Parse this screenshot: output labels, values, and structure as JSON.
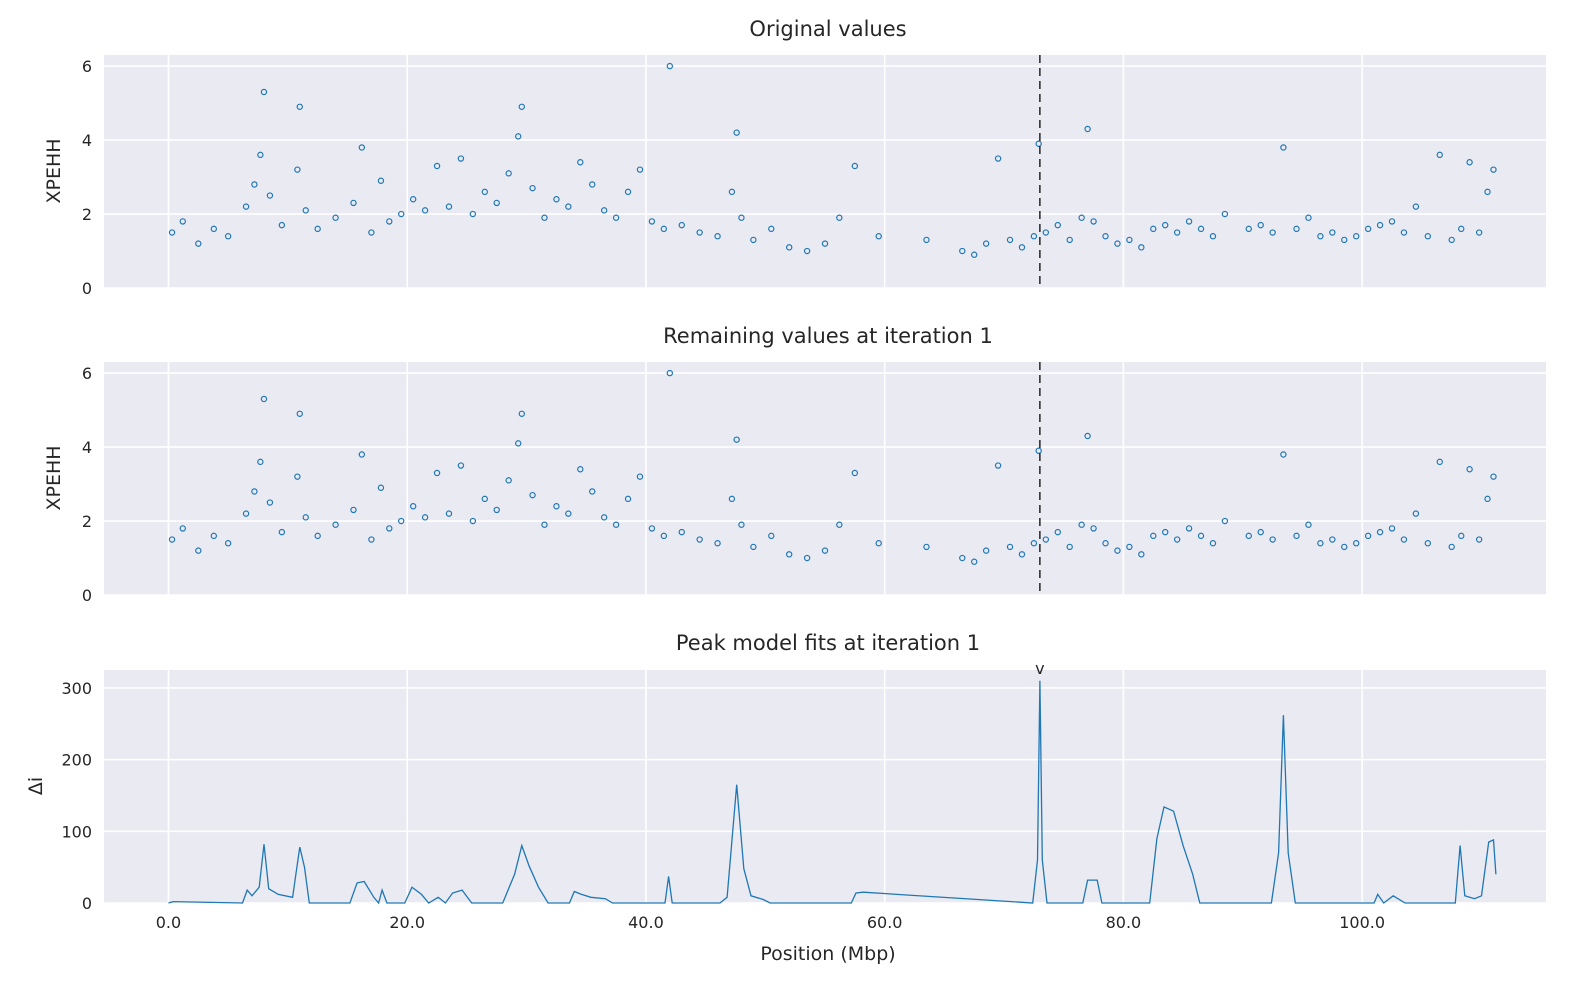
{
  "figure": {
    "xlabel": "Position (Mbp)",
    "x_tick_labels": [
      "0.0",
      "20.0",
      "40.0",
      "60.0",
      "80.0",
      "100.0"
    ]
  },
  "chart_data": [
    {
      "type": "scatter",
      "title": "Original values",
      "xlabel": "Position (Mbp)",
      "ylabel": "XPEHH",
      "xlim": [
        -5.4,
        115.4
      ],
      "ylim": [
        0,
        6.3
      ],
      "y_ticks": [
        0,
        2,
        4,
        6
      ],
      "grid": true,
      "marker": "open-circle",
      "color": "#1f77b4",
      "vline_x": 73.0,
      "x": [
        0.3,
        1.2,
        2.5,
        3.8,
        5.0,
        6.5,
        7.2,
        7.7,
        8.0,
        8.5,
        9.5,
        10.8,
        11.0,
        11.5,
        12.5,
        14.0,
        15.5,
        16.2,
        17.0,
        17.8,
        18.5,
        19.5,
        20.5,
        21.5,
        22.5,
        23.5,
        24.5,
        25.5,
        26.5,
        27.5,
        28.5,
        29.3,
        29.6,
        30.5,
        31.5,
        32.5,
        33.5,
        34.5,
        35.5,
        36.5,
        37.5,
        38.5,
        39.5,
        40.5,
        41.5,
        42.0,
        43.0,
        44.5,
        46.0,
        47.2,
        47.6,
        48.0,
        49.0,
        50.5,
        52.0,
        53.5,
        55.0,
        56.2,
        57.5,
        59.5,
        63.5,
        66.5,
        67.5,
        68.5,
        69.5,
        70.5,
        71.5,
        72.5,
        72.9,
        73.5,
        74.5,
        75.5,
        76.5,
        77.0,
        77.5,
        78.5,
        79.5,
        80.5,
        81.5,
        82.5,
        83.5,
        84.5,
        85.5,
        86.5,
        87.5,
        88.5,
        90.5,
        91.5,
        92.5,
        93.4,
        94.5,
        95.5,
        96.5,
        97.5,
        98.5,
        99.5,
        100.5,
        101.5,
        102.5,
        103.5,
        104.5,
        105.5,
        106.5,
        107.5,
        108.3,
        109.0,
        109.8,
        110.5,
        111.0
      ],
      "y": [
        1.5,
        1.8,
        1.2,
        1.6,
        1.4,
        2.2,
        2.8,
        3.6,
        5.3,
        2.5,
        1.7,
        3.2,
        4.9,
        2.1,
        1.6,
        1.9,
        2.3,
        3.8,
        1.5,
        2.9,
        1.8,
        2.0,
        2.4,
        2.1,
        3.3,
        2.2,
        3.5,
        2.0,
        2.6,
        2.3,
        3.1,
        4.1,
        4.9,
        2.7,
        1.9,
        2.4,
        2.2,
        3.4,
        2.8,
        2.1,
        1.9,
        2.6,
        3.2,
        1.8,
        1.6,
        6.0,
        1.7,
        1.5,
        1.4,
        2.6,
        4.2,
        1.9,
        1.3,
        1.6,
        1.1,
        1.0,
        1.2,
        1.9,
        3.3,
        1.4,
        1.3,
        1.0,
        0.9,
        1.2,
        3.5,
        1.3,
        1.1,
        1.4,
        3.9,
        1.5,
        1.7,
        1.3,
        1.9,
        4.3,
        1.8,
        1.4,
        1.2,
        1.3,
        1.1,
        1.6,
        1.7,
        1.5,
        1.8,
        1.6,
        1.4,
        2.0,
        1.6,
        1.7,
        1.5,
        3.8,
        1.6,
        1.9,
        1.4,
        1.5,
        1.3,
        1.4,
        1.6,
        1.7,
        1.8,
        1.5,
        2.2,
        1.4,
        3.6,
        1.3,
        1.6,
        3.4,
        1.5,
        2.6,
        3.2
      ]
    },
    {
      "type": "scatter",
      "title": "Remaining values at iteration 1",
      "xlabel": "Position (Mbp)",
      "ylabel": "XPEHH",
      "xlim": [
        -5.4,
        115.4
      ],
      "ylim": [
        0,
        6.3
      ],
      "y_ticks": [
        0,
        2,
        4,
        6
      ],
      "grid": true,
      "marker": "open-circle",
      "color": "#1f77b4",
      "vline_x": 73.0,
      "x": [
        0.3,
        1.2,
        2.5,
        3.8,
        5.0,
        6.5,
        7.2,
        7.7,
        8.0,
        8.5,
        9.5,
        10.8,
        11.0,
        11.5,
        12.5,
        14.0,
        15.5,
        16.2,
        17.0,
        17.8,
        18.5,
        19.5,
        20.5,
        21.5,
        22.5,
        23.5,
        24.5,
        25.5,
        26.5,
        27.5,
        28.5,
        29.3,
        29.6,
        30.5,
        31.5,
        32.5,
        33.5,
        34.5,
        35.5,
        36.5,
        37.5,
        38.5,
        39.5,
        40.5,
        41.5,
        42.0,
        43.0,
        44.5,
        46.0,
        47.2,
        47.6,
        48.0,
        49.0,
        50.5,
        52.0,
        53.5,
        55.0,
        56.2,
        57.5,
        59.5,
        63.5,
        66.5,
        67.5,
        68.5,
        69.5,
        70.5,
        71.5,
        72.5,
        72.9,
        73.5,
        74.5,
        75.5,
        76.5,
        77.0,
        77.5,
        78.5,
        79.5,
        80.5,
        81.5,
        82.5,
        83.5,
        84.5,
        85.5,
        86.5,
        87.5,
        88.5,
        90.5,
        91.5,
        92.5,
        93.4,
        94.5,
        95.5,
        96.5,
        97.5,
        98.5,
        99.5,
        100.5,
        101.5,
        102.5,
        103.5,
        104.5,
        105.5,
        106.5,
        107.5,
        108.3,
        109.0,
        109.8,
        110.5,
        111.0
      ],
      "y": [
        1.5,
        1.8,
        1.2,
        1.6,
        1.4,
        2.2,
        2.8,
        3.6,
        5.3,
        2.5,
        1.7,
        3.2,
        4.9,
        2.1,
        1.6,
        1.9,
        2.3,
        3.8,
        1.5,
        2.9,
        1.8,
        2.0,
        2.4,
        2.1,
        3.3,
        2.2,
        3.5,
        2.0,
        2.6,
        2.3,
        3.1,
        4.1,
        4.9,
        2.7,
        1.9,
        2.4,
        2.2,
        3.4,
        2.8,
        2.1,
        1.9,
        2.6,
        3.2,
        1.8,
        1.6,
        6.0,
        1.7,
        1.5,
        1.4,
        2.6,
        4.2,
        1.9,
        1.3,
        1.6,
        1.1,
        1.0,
        1.2,
        1.9,
        3.3,
        1.4,
        1.3,
        1.0,
        0.9,
        1.2,
        3.5,
        1.3,
        1.1,
        1.4,
        3.9,
        1.5,
        1.7,
        1.3,
        1.9,
        4.3,
        1.8,
        1.4,
        1.2,
        1.3,
        1.1,
        1.6,
        1.7,
        1.5,
        1.8,
        1.6,
        1.4,
        2.0,
        1.6,
        1.7,
        1.5,
        3.8,
        1.6,
        1.9,
        1.4,
        1.5,
        1.3,
        1.4,
        1.6,
        1.7,
        1.8,
        1.5,
        2.2,
        1.4,
        3.6,
        1.3,
        1.6,
        3.4,
        1.5,
        2.6,
        3.2
      ]
    },
    {
      "type": "line",
      "title": "Peak model fits at iteration 1",
      "xlabel": "Position (Mbp)",
      "ylabel": "Δi",
      "xlim": [
        -5.4,
        115.4
      ],
      "ylim": [
        0,
        325
      ],
      "y_ticks": [
        0,
        100,
        200,
        300
      ],
      "grid": true,
      "color": "#1f77b4",
      "peak_marker": {
        "x": 73.0,
        "label": "v"
      },
      "x": [
        0.0,
        0.4,
        6.2,
        6.6,
        7.0,
        7.6,
        8.0,
        8.4,
        9.2,
        10.4,
        10.8,
        11.0,
        11.4,
        11.8,
        15.2,
        15.8,
        16.4,
        17.2,
        17.6,
        17.9,
        18.3,
        19.8,
        20.4,
        21.2,
        21.8,
        22.6,
        23.2,
        23.8,
        24.6,
        25.4,
        28.0,
        29.0,
        29.6,
        30.2,
        31.0,
        31.8,
        33.6,
        34.0,
        34.6,
        35.4,
        36.6,
        37.2,
        41.6,
        41.9,
        42.2,
        46.2,
        46.8,
        47.6,
        48.2,
        48.8,
        49.8,
        50.4,
        57.2,
        57.6,
        58.2,
        72.4,
        72.8,
        73.0,
        73.2,
        73.6,
        76.6,
        77.0,
        77.8,
        78.2,
        82.2,
        82.8,
        83.4,
        84.2,
        85.0,
        85.8,
        86.4,
        92.4,
        93.0,
        93.4,
        93.8,
        94.4,
        101.0,
        101.3,
        101.8,
        102.6,
        103.6,
        107.8,
        108.2,
        108.6,
        109.4,
        110.0,
        110.6,
        111.0,
        111.2
      ],
      "y": [
        0,
        2,
        0,
        18,
        10,
        22,
        82,
        20,
        12,
        8,
        55,
        78,
        50,
        0,
        0,
        28,
        30,
        8,
        0,
        18,
        0,
        0,
        22,
        12,
        0,
        8,
        0,
        14,
        18,
        0,
        0,
        40,
        80,
        52,
        22,
        0,
        0,
        16,
        12,
        8,
        6,
        0,
        0,
        37,
        0,
        0,
        8,
        165,
        48,
        10,
        5,
        0,
        0,
        14,
        15,
        0,
        60,
        310,
        60,
        0,
        0,
        32,
        32,
        0,
        0,
        90,
        134,
        128,
        80,
        40,
        0,
        0,
        70,
        262,
        70,
        0,
        0,
        12,
        0,
        10,
        0,
        0,
        80,
        10,
        6,
        10,
        85,
        88,
        40
      ]
    }
  ]
}
